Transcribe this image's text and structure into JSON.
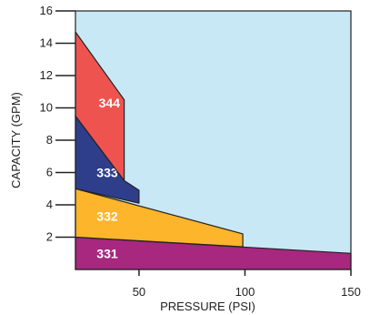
{
  "chart_data": {
    "type": "area",
    "xlabel": "PRESSURE (PSI)",
    "ylabel": "CAPACITY (GPM)",
    "xlim": [
      20,
      150
    ],
    "ylim": [
      0,
      16
    ],
    "x_ticks": [
      50,
      100,
      150
    ],
    "y_ticks": [
      2,
      4,
      6,
      8,
      10,
      12,
      14,
      16
    ],
    "background_color": "#c9e8f6",
    "regions": [
      {
        "name": "331",
        "color": "#a8277f",
        "label_at": [
          30,
          1.0
        ],
        "polygon": [
          [
            20,
            0
          ],
          [
            150,
            0
          ],
          [
            150,
            1.0
          ],
          [
            20,
            2.0
          ]
        ]
      },
      {
        "name": "332",
        "color": "#fdb52c",
        "label_at": [
          30,
          3.3
        ],
        "polygon": [
          [
            20,
            2.0
          ],
          [
            99,
            1.4
          ],
          [
            99,
            2.2
          ],
          [
            20,
            5.0
          ]
        ]
      },
      {
        "name": "333",
        "color": "#2e3e8a",
        "label_at": [
          30,
          6.0
        ],
        "polygon": [
          [
            20,
            5.0
          ],
          [
            50,
            4.1
          ],
          [
            50,
            4.9
          ],
          [
            43,
            5.5
          ],
          [
            20,
            9.5
          ]
        ]
      },
      {
        "name": "344",
        "color": "#ef5350",
        "label_at": [
          31,
          10.3
        ],
        "polygon": [
          [
            20,
            9.5
          ],
          [
            43,
            5.5
          ],
          [
            43,
            10.5
          ],
          [
            20,
            14.7
          ]
        ]
      }
    ]
  }
}
